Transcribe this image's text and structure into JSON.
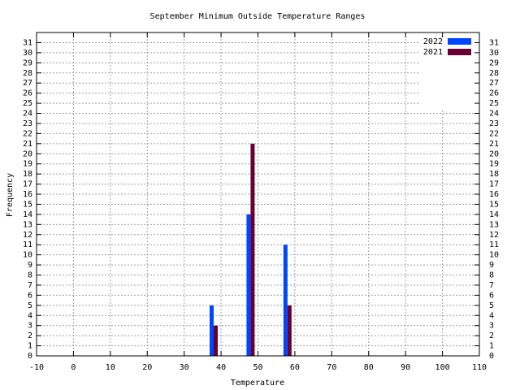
{
  "chart_data": {
    "type": "bar",
    "title": "September Minimum Outside Temperature Ranges",
    "x_label": "Temperature",
    "y_label": "Frequency",
    "x": [
      38,
      48,
      58
    ],
    "series": [
      {
        "name": "2022",
        "color": "#0046ff",
        "values": [
          5,
          14,
          11
        ]
      },
      {
        "name": "2021",
        "color": "#680034",
        "values": [
          3,
          21,
          5
        ]
      }
    ],
    "xlim": [
      -10,
      110
    ],
    "xticks": [
      -10,
      0,
      10,
      20,
      30,
      40,
      50,
      60,
      70,
      80,
      90,
      100,
      110
    ],
    "ylim": [
      0,
      32
    ],
    "yticks": [
      0,
      1,
      2,
      3,
      4,
      5,
      6,
      7,
      8,
      9,
      10,
      11,
      12,
      13,
      14,
      15,
      16,
      17,
      18,
      19,
      20,
      21,
      22,
      23,
      24,
      25,
      26,
      27,
      28,
      29,
      30,
      31
    ],
    "grid": true,
    "legend": "top-right"
  }
}
